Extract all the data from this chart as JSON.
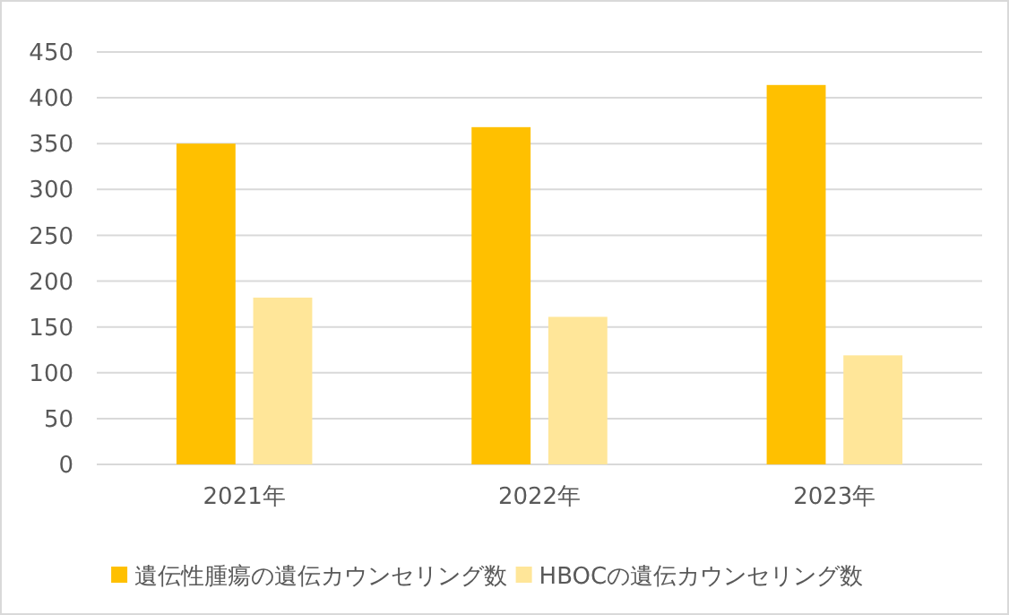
{
  "chart_data": {
    "type": "bar",
    "categories": [
      "2021年",
      "2022年",
      "2023年"
    ],
    "series": [
      {
        "name": "遺伝性腫瘍の遺伝カウンセリング数",
        "color": "#ffc000",
        "values": [
          350,
          368,
          414
        ]
      },
      {
        "name": "HBOCの遺伝カウンセリング数",
        "color": "#ffe699",
        "values": [
          182,
          161,
          119
        ]
      }
    ],
    "ylim": [
      0,
      450
    ],
    "yticks": [
      0,
      50,
      100,
      150,
      200,
      250,
      300,
      350,
      400,
      450
    ],
    "grid": "y",
    "legend": "bottom"
  }
}
